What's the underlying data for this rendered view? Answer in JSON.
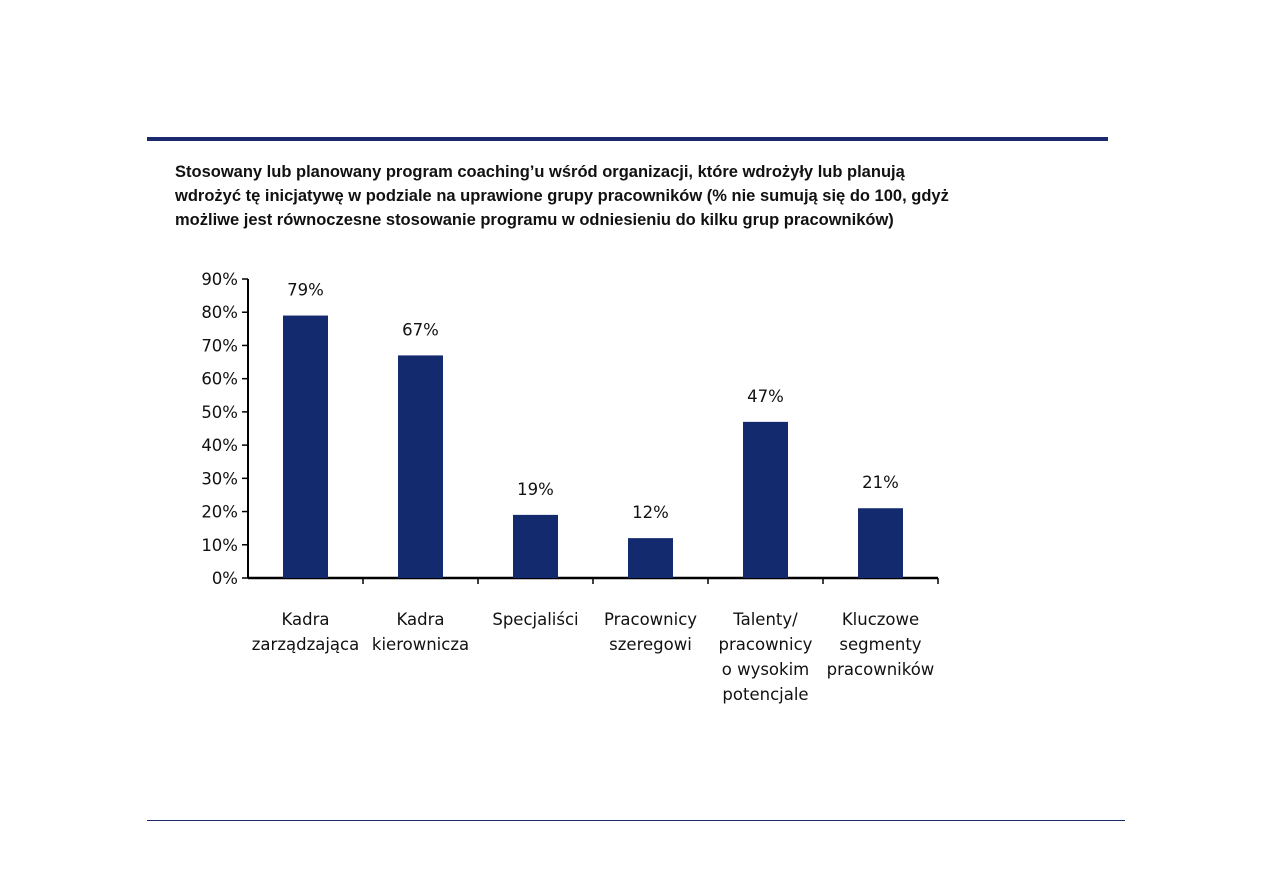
{
  "chart_data": {
    "type": "bar",
    "title": "Stosowany lub planowany program coaching’u wśród organizacji, które wdrożyły lub planują wdrożyć tę inicjatywę w podziale na uprawione grupy pracowników (% nie sumują się do 100, gdyż możliwe jest równoczesne stosowanie programu w odniesieniu do kilku grup pracowników)",
    "xlabel": "",
    "ylabel": "",
    "ylim": [
      0,
      90
    ],
    "yticks": [
      0,
      10,
      20,
      30,
      40,
      50,
      60,
      70,
      80,
      90
    ],
    "tick_suffix": "%",
    "grid": false,
    "legend": "none",
    "bar_color": "#142a6e",
    "categories": [
      [
        "Kadra",
        "zarządzająca"
      ],
      [
        "Kadra",
        "kierownicza"
      ],
      [
        "Specjaliści"
      ],
      [
        "Pracownicy",
        "szeregowi"
      ],
      [
        "Talenty/",
        "pracownicy",
        "o wysokim",
        "potencjale"
      ],
      [
        "Kluczowe",
        "segmenty",
        "pracowników"
      ]
    ],
    "values": [
      79,
      67,
      19,
      12,
      47,
      21
    ],
    "data_labels": [
      "79%",
      "67%",
      "19%",
      "12%",
      "47%",
      "21%"
    ]
  }
}
